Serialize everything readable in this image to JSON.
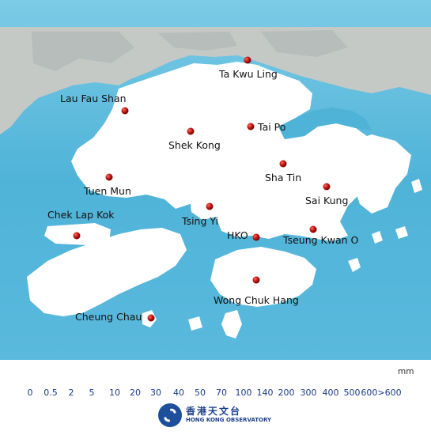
{
  "stations": [
    {
      "name": "Ta Kwu Ling"
    },
    {
      "name": "Lau Fau Shan"
    },
    {
      "name": "Tai Po"
    },
    {
      "name": "Shek Kong"
    },
    {
      "name": "Sha Tin"
    },
    {
      "name": "Tuen Mun"
    },
    {
      "name": "Sai Kung"
    },
    {
      "name": "Chek Lap Kok"
    },
    {
      "name": "Tsing Yi"
    },
    {
      "name": "HKO"
    },
    {
      "name": "Tseung Kwan O"
    },
    {
      "name": "Wong Chuk Hang"
    },
    {
      "name": "Cheung Chau"
    }
  ],
  "legend": {
    "unit": "mm",
    "ticks": [
      "0",
      "0.5",
      "2",
      "5",
      "10",
      "20",
      "30",
      "40",
      "50",
      "70",
      "100",
      "140",
      "200",
      "300",
      "400",
      "500",
      "600>600"
    ]
  },
  "logo": {
    "chinese": "香港天文台",
    "english": "HONG KONG OBSERVATORY"
  },
  "colors": {
    "sea": "#4fb3d8",
    "land": "#ffffff",
    "mainland": "#c8ccc8",
    "marker": "#b00b0b",
    "legend_text": "#1a3a8c"
  }
}
